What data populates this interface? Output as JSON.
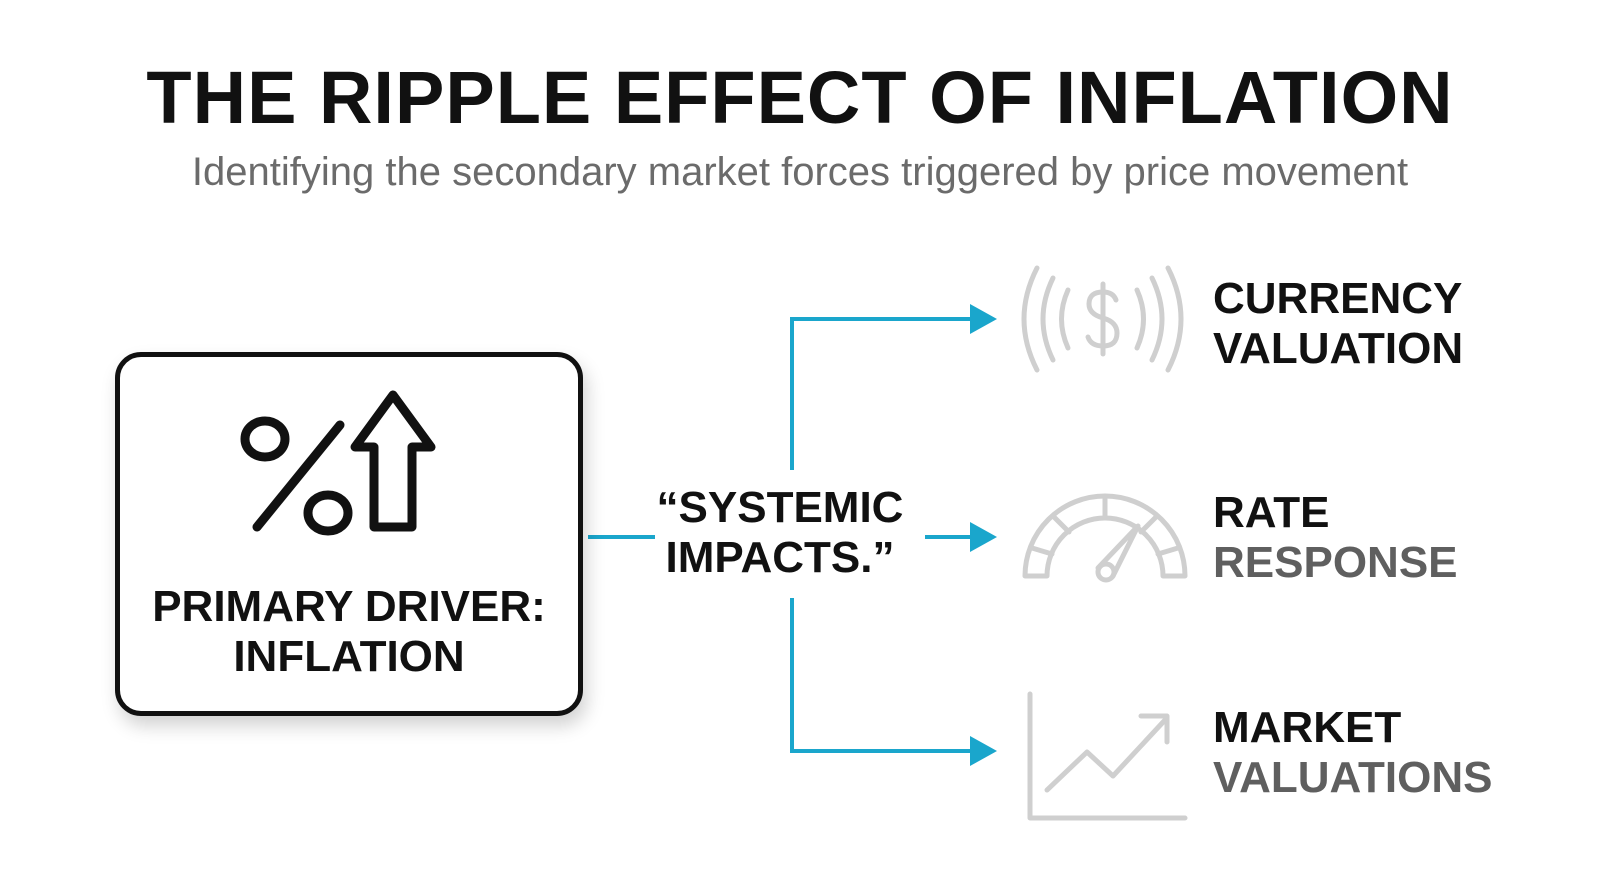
{
  "header": {
    "title": "THE RIPPLE EFFECT OF INFLATION",
    "subtitle": "Identifying the secondary market forces triggered by price movement"
  },
  "driver": {
    "line1": "PRIMARY DRIVER:",
    "line2": "INFLATION",
    "icon": "percent-up-arrow-icon"
  },
  "center": {
    "line1": "“SYSTEMIC",
    "line2": "IMPACTS.”"
  },
  "impacts": [
    {
      "line1": "CURRENCY",
      "line2": "VALUATION",
      "icon": "currency-dollar-waves-icon"
    },
    {
      "line1": "RATE",
      "line2": "RESPONSE",
      "icon": "gauge-icon"
    },
    {
      "line1": "MARKET",
      "line2": "VALUATIONS",
      "icon": "trend-chart-icon"
    }
  ],
  "colors": {
    "accent": "#1aa6cc",
    "text": "#111111",
    "muted": "#5f5f5f",
    "icon_gray": "#cfcfcf"
  }
}
